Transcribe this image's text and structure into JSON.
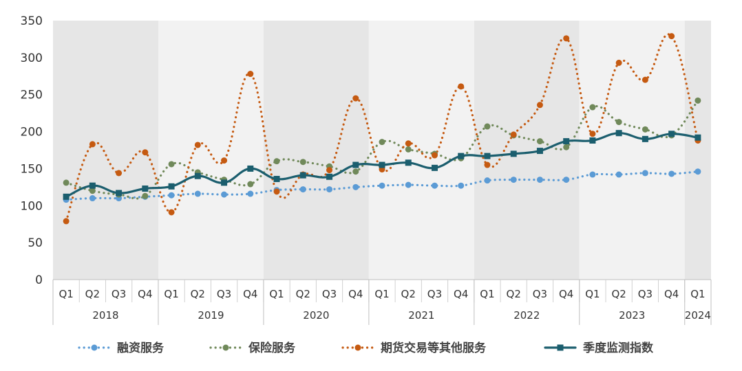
{
  "chart_data": {
    "type": "line",
    "title": "",
    "xlabel": "",
    "ylabel": "",
    "ylim": [
      0,
      350
    ],
    "yticks": [
      0,
      50,
      100,
      150,
      200,
      250,
      300,
      350
    ],
    "quarters": [
      "Q1",
      "Q2",
      "Q3",
      "Q4",
      "Q1",
      "Q2",
      "Q3",
      "Q4",
      "Q1",
      "Q2",
      "Q3",
      "Q4",
      "Q1",
      "Q2",
      "Q3",
      "Q4",
      "Q1",
      "Q2",
      "Q3",
      "Q4",
      "Q1",
      "Q2",
      "Q3",
      "Q4",
      "Q1"
    ],
    "years": [
      {
        "label": "2018",
        "count": 4
      },
      {
        "label": "2019",
        "count": 4
      },
      {
        "label": "2020",
        "count": 4
      },
      {
        "label": "2021",
        "count": 4
      },
      {
        "label": "2022",
        "count": 4
      },
      {
        "label": "2023",
        "count": 4
      },
      {
        "label": "2024",
        "count": 1
      }
    ],
    "band_colors": [
      "#e6e6e6",
      "#f2f2f2"
    ],
    "legend_position": "bottom",
    "series": [
      {
        "name": "融资服务",
        "color": "#5b9bd5",
        "style": "dotted",
        "marker": "circle",
        "values": [
          108,
          110,
          110,
          112,
          114,
          116,
          115,
          116,
          121,
          122,
          122,
          125,
          127,
          128,
          127,
          127,
          134,
          135,
          135,
          135,
          142,
          142,
          144,
          143,
          146
        ]
      },
      {
        "name": "保险服务",
        "color": "#70895a",
        "style": "dotted",
        "marker": "circle",
        "values": [
          131,
          120,
          115,
          113,
          156,
          145,
          135,
          129,
          160,
          159,
          153,
          146,
          186,
          176,
          170,
          164,
          207,
          195,
          187,
          179,
          233,
          213,
          203,
          195,
          242
        ]
      },
      {
        "name": "期货交易等其他服务",
        "color": "#c55a11",
        "style": "dotted",
        "marker": "circle",
        "values": [
          79,
          183,
          144,
          172,
          91,
          182,
          161,
          278,
          119,
          142,
          148,
          245,
          149,
          184,
          168,
          261,
          155,
          196,
          236,
          326,
          197,
          293,
          270,
          329,
          188
        ]
      },
      {
        "name": "季度监测指数",
        "color": "#1b5e6e",
        "style": "solid",
        "marker": "square",
        "values": [
          112,
          127,
          117,
          123,
          126,
          140,
          131,
          150,
          136,
          141,
          139,
          155,
          155,
          158,
          151,
          167,
          167,
          170,
          174,
          187,
          188,
          198,
          190,
          197,
          192
        ]
      }
    ]
  }
}
